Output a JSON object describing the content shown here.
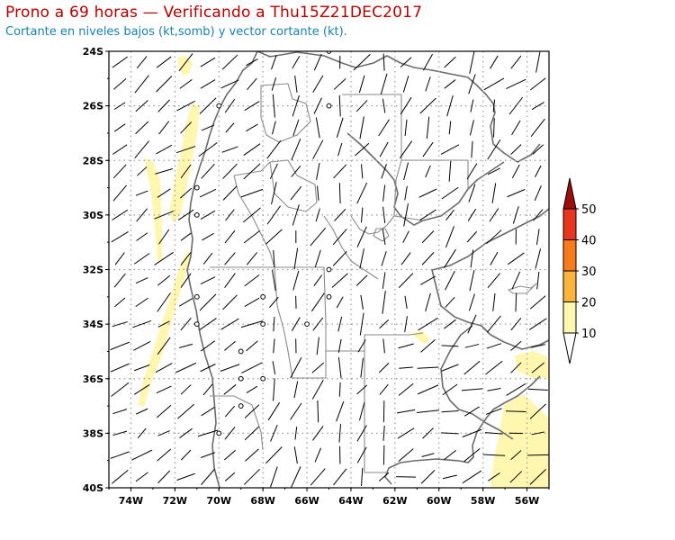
{
  "header": {
    "title": "Prono a 69 horas — Verificando a Thu15Z21DEC2017",
    "subtitle": "Cortante en niveles bajos (kt,somb) y vector cortante (kt)."
  },
  "map": {
    "region": "Central Argentina, Chile and Uruguay",
    "lon_range": [
      -75,
      -55
    ],
    "lat_range": [
      -40,
      -24
    ],
    "y_ticks": [
      "24S",
      "26S",
      "28S",
      "30S",
      "32S",
      "34S",
      "36S",
      "38S",
      "40S"
    ],
    "x_ticks": [
      "74W",
      "72W",
      "70W",
      "68W",
      "66W",
      "64W",
      "62W",
      "60W",
      "58W",
      "56W"
    ],
    "shading_color": "#fff7b0",
    "coast_color": "#6b6b6b",
    "grid_color": "#9a9a9a"
  },
  "colorbar": {
    "levels": [
      "10",
      "20",
      "30",
      "40",
      "50"
    ],
    "colors": [
      "#fff7b0",
      "#fbb53c",
      "#f77a1c",
      "#e8341c",
      "#9e0d0d"
    ]
  }
}
